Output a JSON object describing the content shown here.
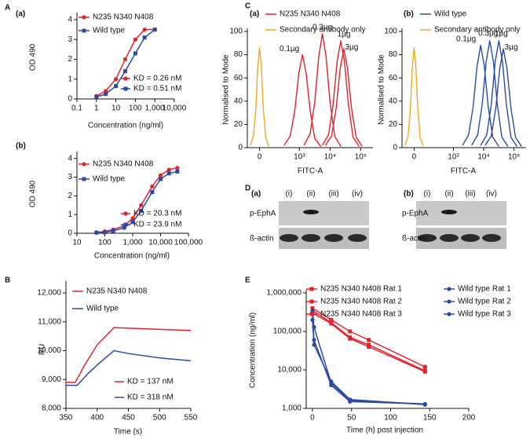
{
  "panel_labels": [
    "A",
    "B",
    "C",
    "D",
    "E"
  ],
  "chart_data": [
    {
      "type": "line",
      "title": "(a)",
      "xlabel": "Concentration (ng/ml)",
      "ylabel": "OD 490",
      "xscale": "log",
      "xlim": [
        0.1,
        10000
      ],
      "xticks": [
        0.1,
        1,
        10,
        100,
        {
          "value": 1000,
          "label": "1,000"
        },
        {
          "value": 10000,
          "label": "10,000"
        }
      ],
      "ylim": [
        0,
        4.2
      ],
      "yticks": [
        0,
        1,
        2,
        3,
        4
      ],
      "x": [
        1,
        3,
        10,
        30,
        100,
        300,
        1000
      ],
      "series": [
        {
          "name": "N235 N340 N408",
          "color": "#e8202a",
          "marker": "circle",
          "values": [
            0.15,
            0.4,
            1.0,
            2.0,
            3.0,
            3.5,
            3.5
          ]
        },
        {
          "name": "Wild type",
          "color": "#2b4aa8",
          "marker": "square",
          "values": [
            0.1,
            0.25,
            0.65,
            1.4,
            2.3,
            3.1,
            3.5
          ]
        }
      ],
      "annotations": [
        "KD = 0.26 nM",
        "KD = 0.51 nM"
      ]
    },
    {
      "type": "line",
      "title": "(b)",
      "xlabel": "Concentration (ng/ml)",
      "ylabel": "OD 490",
      "xscale": "log",
      "xlim": [
        10,
        100000
      ],
      "xticks": [
        10,
        100,
        {
          "value": 1000,
          "label": "1,000"
        },
        {
          "value": 10000,
          "label": "10,000"
        },
        {
          "value": 100000,
          "label": "100,000"
        }
      ],
      "ylim": [
        0,
        4.2
      ],
      "yticks": [
        0,
        1,
        2,
        3,
        4
      ],
      "x": [
        50,
        100,
        200,
        500,
        1000,
        2000,
        5000,
        10000,
        20000,
        40000
      ],
      "series": [
        {
          "name": "N235 N340 N408",
          "color": "#e8202a",
          "marker": "circle",
          "values": [
            0.05,
            0.1,
            0.2,
            0.4,
            0.8,
            1.5,
            2.5,
            3.1,
            3.4,
            3.5
          ]
        },
        {
          "name": "Wild type",
          "color": "#2b4aa8",
          "marker": "square",
          "values": [
            0.03,
            0.05,
            0.12,
            0.3,
            0.6,
            1.2,
            2.2,
            2.9,
            3.2,
            3.3
          ]
        }
      ],
      "annotations": [
        "KD = 20.3 nM",
        "KD = 23.9 nM"
      ]
    },
    {
      "type": "line",
      "xlabel": "Time (s)",
      "ylabel": "RU",
      "xlim": [
        350,
        550
      ],
      "xticks": [
        350,
        400,
        450,
        500,
        550
      ],
      "ylim": [
        8000,
        12300
      ],
      "yticks": [
        {
          "value": 8000,
          "label": "8,000"
        },
        {
          "value": 9000,
          "label": "9,000"
        },
        {
          "value": 10000,
          "label": "10,000"
        },
        {
          "value": 11000,
          "label": "11,000"
        },
        {
          "value": 12000,
          "label": "12,000"
        }
      ],
      "series": [
        {
          "name": "N235 N340 N408",
          "color": "#e8202a",
          "x": [
            350,
            365,
            380,
            400,
            427,
            450,
            500,
            550
          ],
          "values": [
            8900,
            8900,
            9500,
            10200,
            10800,
            10780,
            10740,
            10700
          ]
        },
        {
          "name": "Wild type",
          "color": "#2b4aa8",
          "x": [
            350,
            368,
            385,
            405,
            427,
            450,
            500,
            550
          ],
          "values": [
            8800,
            8800,
            9200,
            9600,
            10000,
            9900,
            9750,
            9650
          ]
        }
      ],
      "annotations": [
        "KD = 137 nM",
        "KD = 318 nM"
      ]
    },
    {
      "type": "density",
      "title": "(a)",
      "xlabel": "FITC-A",
      "ylabel": "Normalised to Mode",
      "xlim": [
        1.3,
        5.4
      ],
      "xticks": [
        {
          "value": 1.7,
          "label": "0"
        },
        {
          "value": 3,
          "label": "10³"
        },
        {
          "value": 4,
          "label": "10⁴"
        },
        {
          "value": 5,
          "label": "10⁵"
        }
      ],
      "ylim": [
        0,
        100
      ],
      "yticks": [
        0,
        20,
        40,
        60,
        80,
        100
      ],
      "series": [
        {
          "name": "N235 N340 N408",
          "color": "#e8202a",
          "curves": [
            {
              "label": "0.1µg",
              "x": [
                2.5,
                2.7,
                2.85,
                2.98,
                3.1,
                3.22,
                3.35,
                3.5,
                3.7
              ],
              "values": [
                2,
                10,
                32,
                64,
                80,
                64,
                32,
                8,
                1
              ]
            },
            {
              "label": "0.3µg",
              "x": [
                3.15,
                3.35,
                3.5,
                3.63,
                3.75,
                3.87,
                4.0,
                4.15,
                4.35
              ],
              "values": [
                2,
                12,
                39,
                78,
                98,
                78,
                39,
                10,
                1
              ]
            },
            {
              "label": "1µg",
              "x": [
                3.75,
                3.95,
                4.1,
                4.23,
                4.35,
                4.47,
                4.6,
                4.75,
                4.95
              ],
              "values": [
                2,
                11,
                37,
                74,
                92,
                74,
                37,
                9,
                1
              ]
            },
            {
              "label": "3µg",
              "x": [
                3.85,
                4.05,
                4.2,
                4.33,
                4.45,
                4.57,
                4.7,
                4.85,
                5.05
              ],
              "values": [
                2,
                10,
                34,
                68,
                85,
                68,
                34,
                9,
                1
              ]
            }
          ]
        },
        {
          "name": "Secondary antibody only",
          "color": "#f5a623",
          "curves": [
            {
              "x": [
                1.4,
                1.5,
                1.58,
                1.64,
                1.7,
                1.76,
                1.82,
                1.9,
                2.0
              ],
              "values": [
                2,
                10,
                34,
                69,
                86,
                69,
                34,
                9,
                1
              ]
            }
          ]
        }
      ]
    },
    {
      "type": "density",
      "title": "(b)",
      "xlabel": "FITC-A",
      "ylabel": "Normalised to Mode",
      "xlim": [
        1.3,
        5.4
      ],
      "xticks": [
        {
          "value": 1.7,
          "label": "0"
        },
        {
          "value": 3,
          "label": "10³"
        },
        {
          "value": 4,
          "label": "10⁴"
        },
        {
          "value": 5,
          "label": "10⁵"
        }
      ],
      "ylim": [
        0,
        100
      ],
      "yticks": [
        0,
        20,
        40,
        60,
        80,
        100
      ],
      "series": [
        {
          "name": "Wild type",
          "color": "#2b4aa8",
          "curves": [
            {
              "label": "0.1µg",
              "x": [
                3.3,
                3.5,
                3.65,
                3.78,
                3.9,
                4.02,
                4.15,
                4.3,
                4.5
              ],
              "values": [
                2,
                11,
                35,
                70,
                88,
                70,
                35,
                9,
                1
              ]
            },
            {
              "label": "0.3µg",
              "x": [
                3.6,
                3.8,
                3.95,
                4.08,
                4.2,
                4.32,
                4.45,
                4.6,
                4.8
              ],
              "values": [
                2,
                11,
                37,
                74,
                92,
                74,
                37,
                9,
                1
              ]
            },
            {
              "label": "1µg",
              "x": [
                3.9,
                4.1,
                4.25,
                4.38,
                4.5,
                4.62,
                4.75,
                4.9,
                5.1
              ],
              "values": [
                2,
                11,
                37,
                74,
                92,
                74,
                37,
                9,
                1
              ]
            },
            {
              "label": "3µg",
              "x": [
                4.05,
                4.25,
                4.4,
                4.53,
                4.65,
                4.77,
                4.9,
                5.05,
                5.25
              ],
              "values": [
                2,
                10,
                34,
                68,
                85,
                68,
                34,
                9,
                1
              ]
            }
          ]
        },
        {
          "name": "Secondary antibody only",
          "color": "#f5a623",
          "curves": [
            {
              "x": [
                1.4,
                1.5,
                1.58,
                1.64,
                1.7,
                1.76,
                1.82,
                1.9,
                2.0
              ],
              "values": [
                2,
                10,
                34,
                69,
                86,
                69,
                34,
                9,
                1
              ]
            }
          ]
        }
      ]
    },
    {
      "type": "line",
      "xlabel": "Time (h) post injection",
      "ylabel": "Concentration (ng/ml)",
      "yscale": "log",
      "xlim": [
        -8,
        200
      ],
      "xticks": [
        0,
        50,
        100,
        150,
        200
      ],
      "ylim": [
        1000,
        1000000
      ],
      "yticks": [
        {
          "value": 1000,
          "label": "1,000"
        },
        {
          "value": 10000,
          "label": "10,000"
        },
        {
          "value": 100000,
          "label": "100,000"
        },
        {
          "value": 1000000,
          "label": "1,000,000"
        }
      ],
      "series": [
        {
          "name": "N235 N340 N408 Rat 1",
          "color": "#e8202a",
          "marker": "square",
          "x": [
            0,
            24,
            48,
            72,
            144
          ],
          "values": [
            400000,
            200000,
            100000,
            60000,
            12000
          ]
        },
        {
          "name": "N235 N340 N408 Rat 2",
          "color": "#e8202a",
          "marker": "square",
          "x": [
            0,
            24,
            48,
            72,
            144
          ],
          "values": [
            350000,
            170000,
            70000,
            45000,
            9500
          ]
        },
        {
          "name": "N235 N340 N408 Rat 3",
          "color": "#e8202a",
          "marker": "square",
          "x": [
            0,
            24,
            48,
            72,
            144
          ],
          "values": [
            300000,
            160000,
            65000,
            40000,
            9000
          ]
        },
        {
          "name": "Wild type Rat 1",
          "color": "#2b4aa8",
          "marker": "circle",
          "x": [
            0,
            2,
            24,
            48,
            144
          ],
          "values": [
            350000,
            130000,
            4500,
            1600,
            1300
          ]
        },
        {
          "name": "Wild type Rat 2",
          "color": "#2b4aa8",
          "marker": "circle",
          "x": [
            0,
            2,
            24,
            48,
            144
          ],
          "values": [
            280000,
            60000,
            4000,
            1500,
            1300
          ]
        },
        {
          "name": "Wild type Rat 3",
          "color": "#2b4aa8",
          "marker": "circle",
          "x": [
            0,
            2,
            24,
            48,
            144
          ],
          "values": [
            200000,
            45000,
            5000,
            1700,
            1250
          ]
        }
      ]
    }
  ],
  "blots": [
    {
      "title": "(a)",
      "lanes": [
        "(i)",
        "(ii)",
        "(iii)",
        "(iv)"
      ],
      "rows": [
        "p-EphA",
        "ß-actin"
      ]
    },
    {
      "title": "(b)",
      "lanes": [
        "(i)",
        "(ii)",
        "(iii)",
        "(iv)"
      ],
      "rows": [
        "p-EphA",
        "ß-actin"
      ]
    }
  ]
}
